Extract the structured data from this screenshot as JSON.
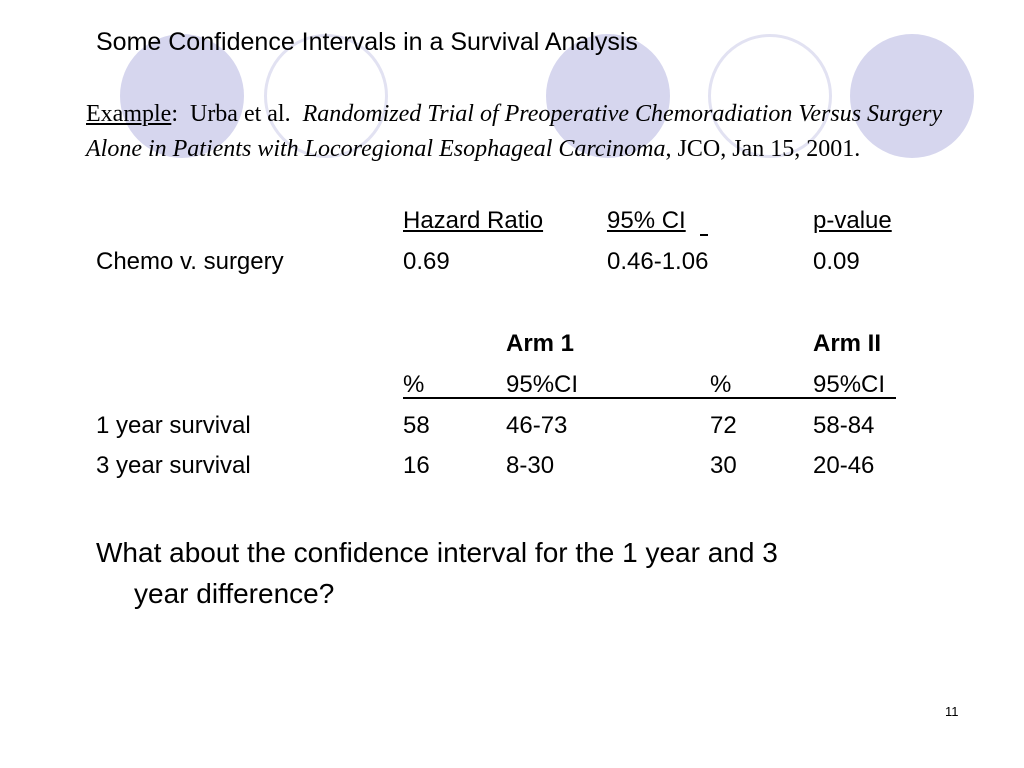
{
  "slide": {
    "title": "Some Confidence Intervals in a Survival Analysis",
    "example": {
      "lead": "Example",
      "sep": ":  Urba et al.  ",
      "article": "Randomized Trial of Preoperative Chemoradiation Versus Surgery Alone in Patients with Locoregional Esophageal Carcinoma",
      "journal": ", JCO, Jan 15, 2001."
    },
    "hazard_table": {
      "headers": [
        "Hazard Ratio",
        "95% CI",
        "p-value"
      ],
      "row": {
        "label": "Chemo v. surgery",
        "hr": "0.69",
        "ci": "0.46-1.06",
        "p": "0.09"
      }
    },
    "survival_table": {
      "arm1": "Arm 1",
      "arm2": "Arm II",
      "subheaders": [
        "%",
        "95%CI",
        "%",
        "95%CI"
      ],
      "rows": [
        {
          "label": "1 year survival",
          "arm1_pct": "58",
          "arm1_ci": "46-73",
          "arm2_pct": "72",
          "arm2_ci": "58-84"
        },
        {
          "label": "3 year survival",
          "arm1_pct": "16",
          "arm1_ci": "8-30",
          "arm2_pct": "30",
          "arm2_ci": "20-46"
        }
      ]
    },
    "question": {
      "line1": "What about the confidence interval for the 1 year and 3",
      "line2": "year difference?"
    },
    "page_number": "11"
  }
}
